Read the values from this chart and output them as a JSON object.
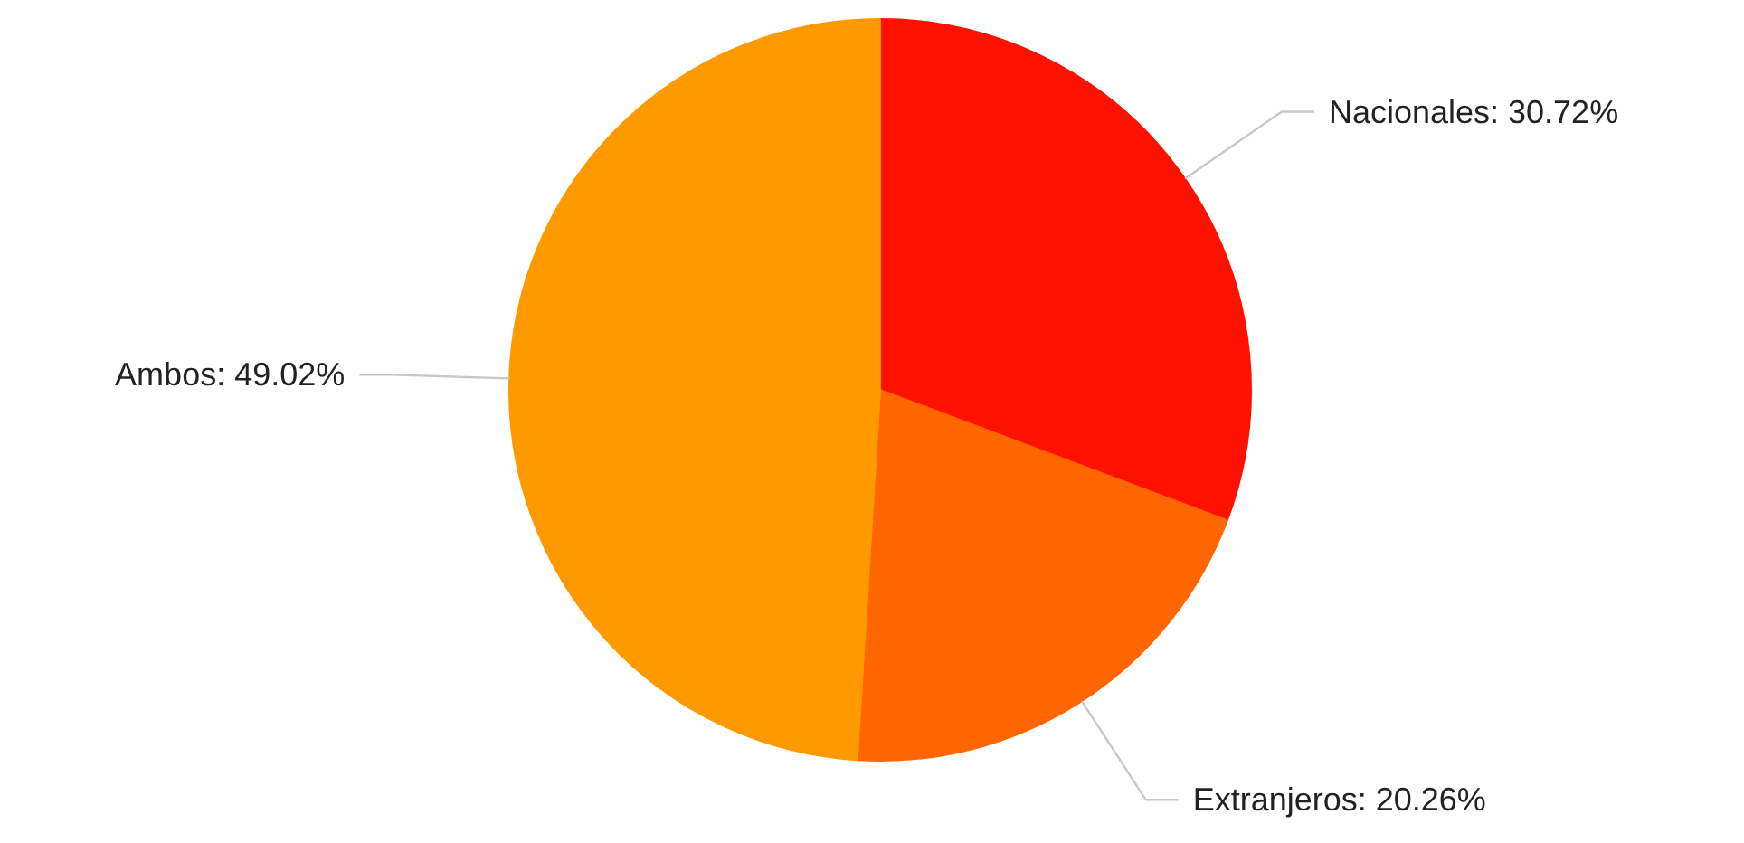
{
  "chart_data": {
    "type": "pie",
    "categories": [
      "Nacionales",
      "Extranjeros",
      "Ambos"
    ],
    "values": [
      30.72,
      20.26,
      49.02
    ],
    "colors": [
      "#ff1100",
      "#ff6600",
      "#ff9900"
    ],
    "value_labels": [
      "30.72%",
      "20.26%",
      "49.02%"
    ]
  }
}
